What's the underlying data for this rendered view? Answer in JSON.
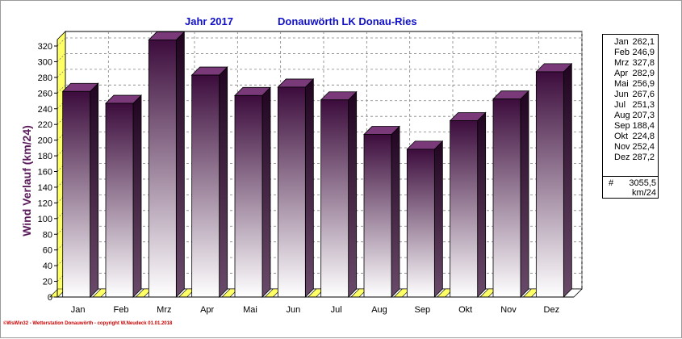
{
  "chart_data": {
    "type": "bar",
    "title_year": "Jahr  2017",
    "title_station": "Donauwörth LK Donau-Ries",
    "ylabel": "Wind Verlauf  (km/24)",
    "ylim": [
      0,
      320
    ],
    "ytick_step": 20,
    "categories": [
      "Jan",
      "Feb",
      "Mrz",
      "Apr",
      "Mai",
      "Jun",
      "Jul",
      "Aug",
      "Sep",
      "Okt",
      "Nov",
      "Dez"
    ],
    "values": [
      262.1,
      246.9,
      327.8,
      282.9,
      256.9,
      267.6,
      251.3,
      207.3,
      188.4,
      224.8,
      252.4,
      287.2
    ],
    "legend_values": [
      "262,1",
      "246,9",
      "327,8",
      "282,9",
      "256,9",
      "267,6",
      "251,3",
      "207,3",
      "188,4",
      "224,8",
      "252,4",
      "287,2"
    ],
    "total_symbol": "#",
    "total": "3055,5",
    "total_unit": "km/24",
    "grid": true,
    "legend_position": "right",
    "colors": {
      "bar_top": "#3c0c3c",
      "bar_bottom": "#ffffff",
      "bar_side": "#2a052a",
      "bar_cap": "#7a3a7a",
      "floor": "#ffff66",
      "title": "#1010c8",
      "ylabel": "#5a1a5a"
    }
  },
  "footer": "©WsWin32 - Wetterstation Donauwörth - copyright W.Neudeck 01.01.2018"
}
